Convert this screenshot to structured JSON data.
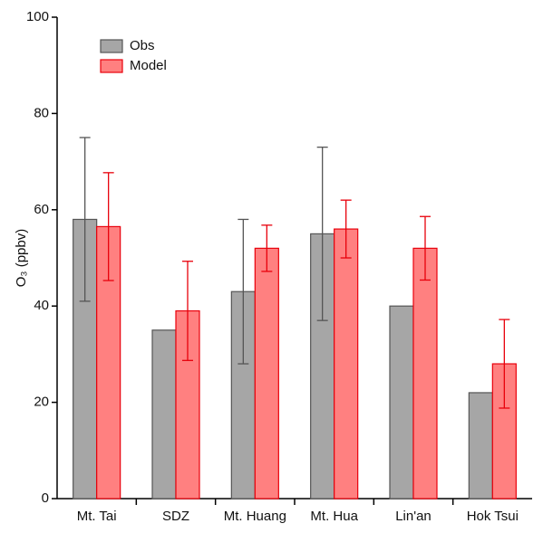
{
  "chart_data": {
    "type": "bar",
    "ylabel": "O₃ (ppbv)",
    "categories": [
      "Mt. Tai",
      "SDZ",
      "Mt. Huang",
      "Mt. Hua",
      "Lin'an",
      "Hok Tsui"
    ],
    "series": [
      {
        "name": "Obs",
        "color": "#a6a6a6",
        "edge_color": "#555555",
        "values": [
          58,
          35,
          43,
          55,
          40,
          22
        ],
        "errors": [
          17,
          null,
          15,
          18,
          null,
          null
        ]
      },
      {
        "name": "Model",
        "color": "#ff8080",
        "edge_color": "#e8000b",
        "values": [
          56.5,
          39,
          52,
          56,
          52,
          28
        ],
        "errors": [
          11.2,
          10.3,
          4.8,
          6,
          6.6,
          9.2
        ]
      }
    ],
    "ylim": [
      0,
      100
    ],
    "yticks": [
      0,
      20,
      40,
      60,
      80,
      100
    ],
    "grid": false,
    "legend": "upper left"
  }
}
